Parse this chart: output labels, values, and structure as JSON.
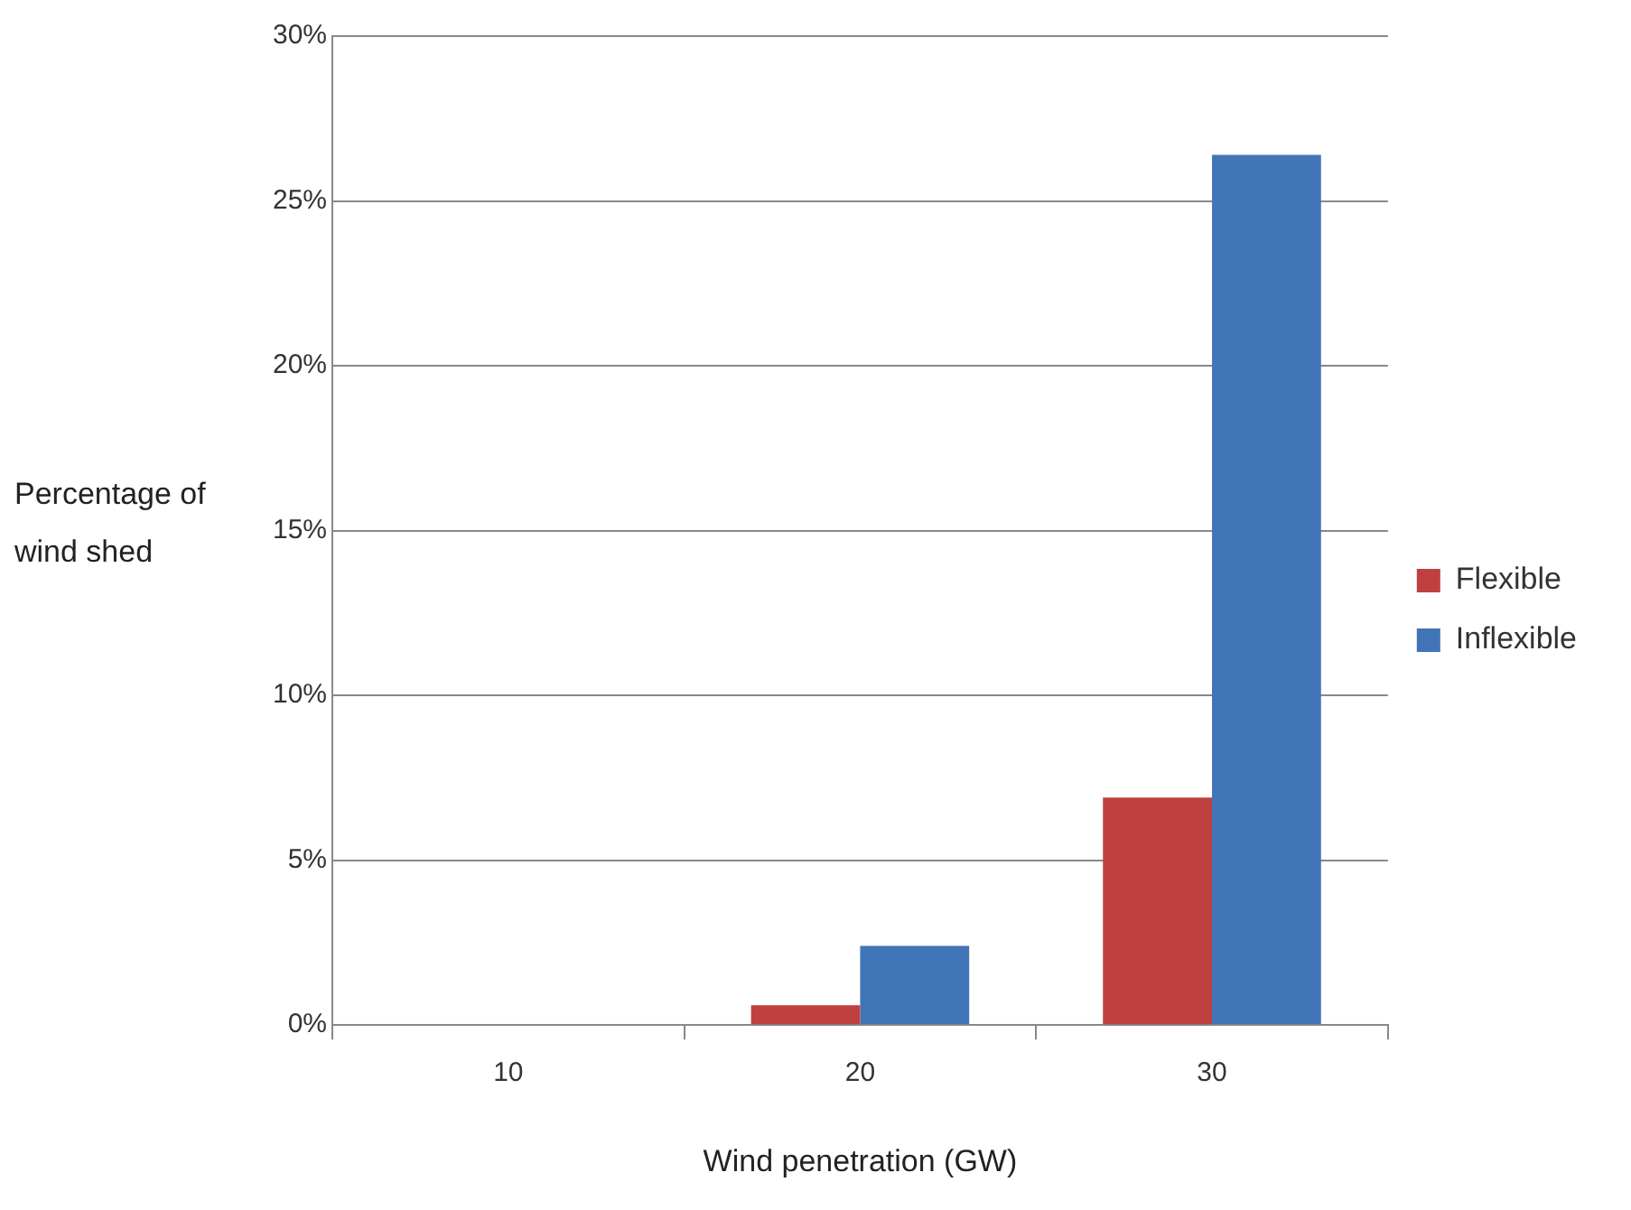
{
  "chart_data": {
    "type": "bar",
    "xlabel": "Wind penetration (GW)",
    "ylabel": "Percentage of wind shed",
    "categories": [
      "10",
      "20",
      "30"
    ],
    "series": [
      {
        "name": "Flexible",
        "color": "#c0403f",
        "values": [
          0,
          0.6,
          6.9
        ]
      },
      {
        "name": "Inflexible",
        "color": "#4275b8",
        "values": [
          0,
          2.4,
          26.4
        ]
      }
    ],
    "ylim": [
      0,
      30
    ],
    "yticks": [
      {
        "value": 0,
        "label": "0%"
      },
      {
        "value": 5,
        "label": "5%"
      },
      {
        "value": 10,
        "label": "10%"
      },
      {
        "value": 15,
        "label": "15%"
      },
      {
        "value": 20,
        "label": "20%"
      },
      {
        "value": 25,
        "label": "25%"
      },
      {
        "value": 30,
        "label": "30%"
      }
    ],
    "grid": "y",
    "legend": "right"
  }
}
